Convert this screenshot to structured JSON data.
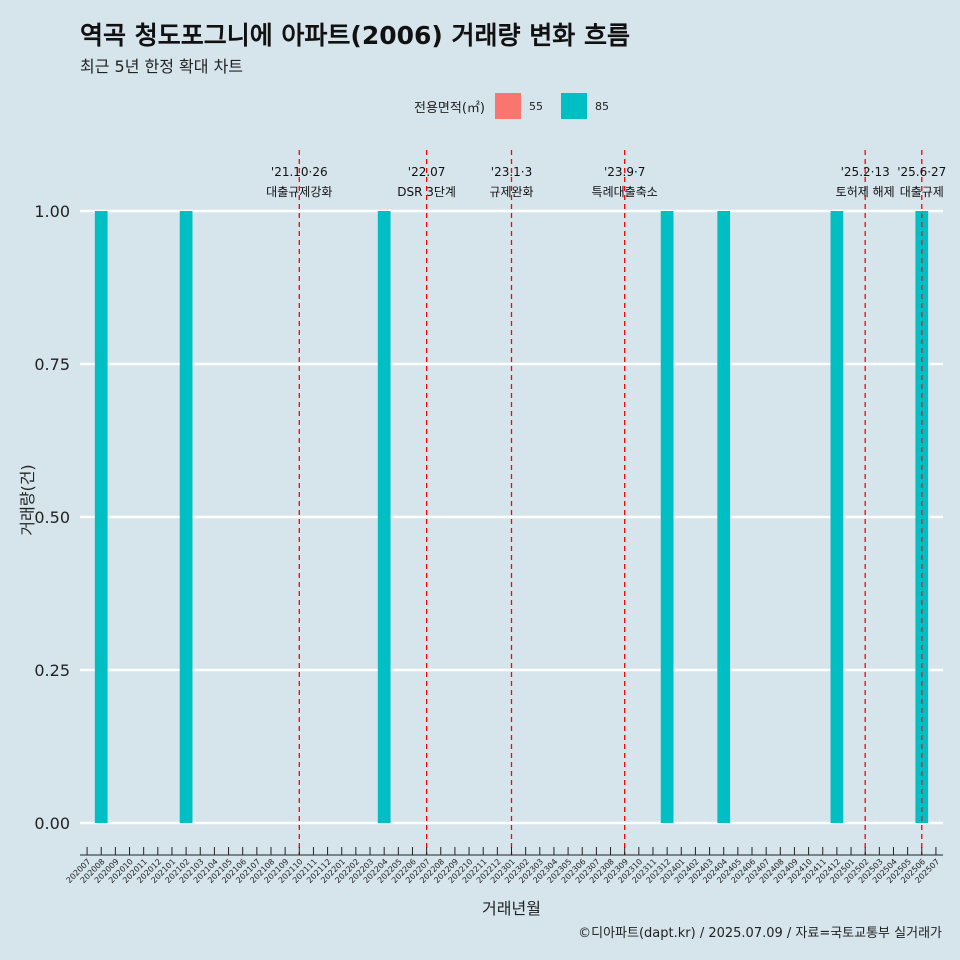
{
  "title": "역곡 청도포그니에 아파트(2006) 거래량 변화 흐름",
  "subtitle": "최근 5년 한정 확대 차트",
  "caption": "©디아파트(dapt.kr) / 2025.07.09 / 자료=국토교통부 실거래가",
  "legend": {
    "title": "전용면적(㎡)",
    "items": [
      {
        "label": "55",
        "color": "#f8766d"
      },
      {
        "label": "85",
        "color": "#00bfc4"
      }
    ]
  },
  "chart_data": {
    "type": "bar",
    "xlabel": "거래년월",
    "ylabel": "거래량(건)",
    "ylim": [
      0,
      1
    ],
    "yticks": [
      "0.00",
      "0.25",
      "0.50",
      "0.75",
      "1.00"
    ],
    "categories": [
      "202007",
      "202008",
      "202009",
      "202010",
      "202011",
      "202012",
      "202101",
      "202102",
      "202103",
      "202104",
      "202105",
      "202106",
      "202107",
      "202108",
      "202109",
      "202110",
      "202111",
      "202112",
      "202201",
      "202202",
      "202203",
      "202204",
      "202205",
      "202206",
      "202207",
      "202208",
      "202209",
      "202210",
      "202211",
      "202212",
      "202301",
      "202302",
      "202303",
      "202304",
      "202305",
      "202306",
      "202307",
      "202308",
      "202309",
      "202310",
      "202311",
      "202312",
      "202401",
      "202402",
      "202403",
      "202404",
      "202405",
      "202406",
      "202407",
      "202408",
      "202409",
      "202410",
      "202411",
      "202412",
      "202501",
      "202502",
      "202503",
      "202504",
      "202505",
      "202506",
      "202507"
    ],
    "series": [
      {
        "name": "85",
        "color": "#00bfc4",
        "points": [
          {
            "x": "202008",
            "y": 1
          },
          {
            "x": "202102",
            "y": 1
          },
          {
            "x": "202204",
            "y": 1
          },
          {
            "x": "202312",
            "y": 1
          },
          {
            "x": "202404",
            "y": 1
          },
          {
            "x": "202412",
            "y": 1
          },
          {
            "x": "202506",
            "y": 1
          }
        ]
      }
    ],
    "events": [
      {
        "x": "202110",
        "date": "'21.10·26",
        "label": "대출규제강화"
      },
      {
        "x": "202207",
        "date": "'22.07",
        "label": "DSR 3단계"
      },
      {
        "x": "202301",
        "date": "'23.1·3",
        "label": "규제완화"
      },
      {
        "x": "202309",
        "date": "'23.9·7",
        "label": "특례대출축소"
      },
      {
        "x": "202502",
        "date": "'25.2·13",
        "label": "토허제 해제"
      },
      {
        "x": "202506",
        "date": "'25.6·27",
        "label": "대출규제"
      }
    ]
  }
}
